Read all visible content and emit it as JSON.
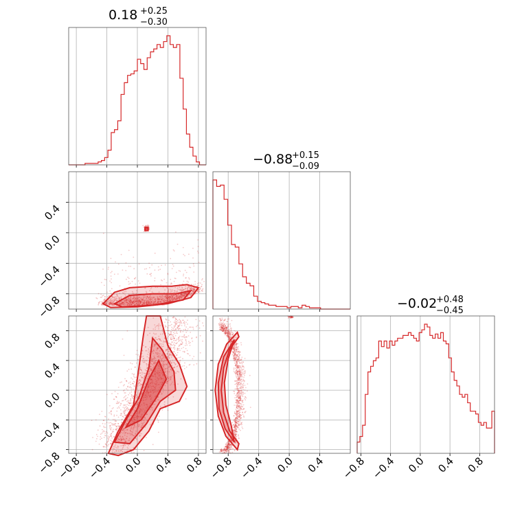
{
  "chart_data": {
    "type": "corner",
    "color": "#d62728",
    "grid": true,
    "parameters": 3,
    "titles": [
      {
        "value": "0.18",
        "plus": "+0.25",
        "minus": "−0.30"
      },
      {
        "value": "−0.88",
        "plus": "+0.15",
        "minus": "−0.09"
      },
      {
        "value": "−0.02",
        "plus": "+0.48",
        "minus": "−0.45"
      }
    ],
    "axis_ranges": [
      [
        -0.9,
        0.9
      ],
      [
        -1.0,
        0.8
      ],
      [
        -0.85,
        1.0
      ]
    ],
    "tick_values": [
      [
        -0.8,
        -0.4,
        0.0,
        0.4,
        0.8
      ],
      [
        -0.8,
        -0.4,
        0.0,
        0.4
      ],
      [
        -0.8,
        -0.4,
        0.0,
        0.4,
        0.8
      ]
    ],
    "tick_labels": [
      [
        "−0.8",
        "−0.4",
        "0.0",
        "0.4",
        "0.8"
      ],
      [
        "−0.8",
        "−0.4",
        "0.0",
        "0.4"
      ],
      [
        "−0.8",
        "−0.4",
        "0.0",
        "0.4",
        "0.8"
      ]
    ],
    "histograms": [
      {
        "param": 0,
        "bin_range": [
          -0.9,
          0.9
        ],
        "counts": [
          0,
          0,
          0,
          0,
          0,
          1,
          1,
          1,
          1,
          2,
          3,
          5,
          10,
          22,
          24,
          30,
          48,
          56,
          61,
          62,
          64,
          72,
          69,
          65,
          73,
          77,
          79,
          82,
          80,
          84,
          88,
          82,
          80,
          82,
          59,
          38,
          21,
          12,
          6,
          2,
          0,
          0
        ]
      },
      {
        "param": 1,
        "bin_range": [
          -1.0,
          0.8
        ],
        "counts": [
          100,
          95,
          96,
          85,
          65,
          50,
          48,
          35,
          25,
          20,
          18,
          10,
          6,
          5,
          4,
          3,
          3,
          2,
          2,
          2,
          1,
          2,
          2,
          1,
          3,
          2,
          1,
          1,
          1,
          0,
          0,
          0,
          0,
          0,
          0,
          0,
          0
        ]
      },
      {
        "param": 2,
        "bin_range": [
          -0.85,
          1.0
        ],
        "counts": [
          8,
          12,
          20,
          42,
          58,
          62,
          66,
          68,
          80,
          76,
          80,
          75,
          80,
          77,
          80,
          82,
          82,
          84,
          84,
          86,
          84,
          82,
          80,
          86,
          88,
          92,
          90,
          84,
          82,
          85,
          82,
          86,
          80,
          78,
          68,
          58,
          52,
          48,
          42,
          40,
          42,
          36,
          30,
          30,
          28,
          22,
          20,
          22,
          18,
          18,
          30
        ]
      }
    ],
    "scatter_pairs": [
      {
        "x_param": 0,
        "y_param": 1,
        "shape": "band near y=-0.9 spanning x=-0.45..0.8, small blob at (0.12,0.05)"
      },
      {
        "x_param": 0,
        "y_param": 2,
        "shape": "diagonal cloud x=-0.4..0.7, y=-0.85..1.0"
      },
      {
        "x_param": 1,
        "y_param": 2,
        "shape": "crescent from (-0.68,0.75) through (-0.95,0.0) to (-0.68,-0.75)"
      }
    ]
  }
}
